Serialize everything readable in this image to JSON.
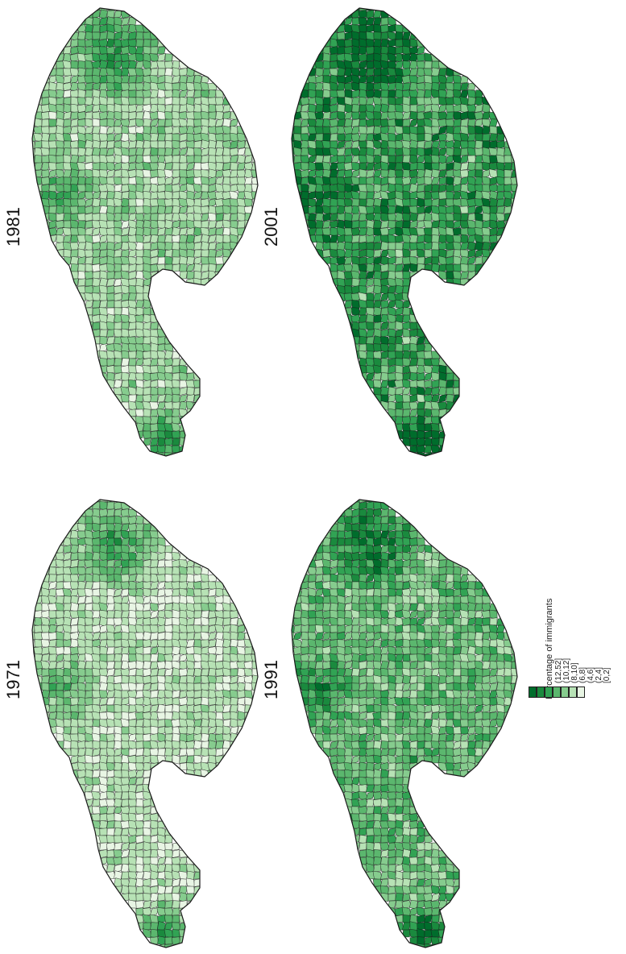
{
  "maps": [
    {
      "year": "1971",
      "intensity": 0.18
    },
    {
      "year": "1981",
      "intensity": 0.26
    },
    {
      "year": "1991",
      "intensity": 0.42
    },
    {
      "year": "2001",
      "intensity": 0.6
    }
  ],
  "legend": {
    "title": "Percentage of immigrants",
    "classes": [
      {
        "label": "(12,52]",
        "color": "#006d2c"
      },
      {
        "label": "(10,12]",
        "color": "#1a8a3e"
      },
      {
        "label": "(8,10]",
        "color": "#31a354"
      },
      {
        "label": "(6,8]",
        "color": "#5bb76e"
      },
      {
        "label": "(4,6]",
        "color": "#86cc8e"
      },
      {
        "label": "(2,4]",
        "color": "#b7e2b5"
      },
      {
        "label": "[0,2]",
        "color": "#e8f5e4"
      }
    ]
  },
  "colors": {
    "boundary": "#1a1a1a",
    "background": "#ffffff"
  }
}
